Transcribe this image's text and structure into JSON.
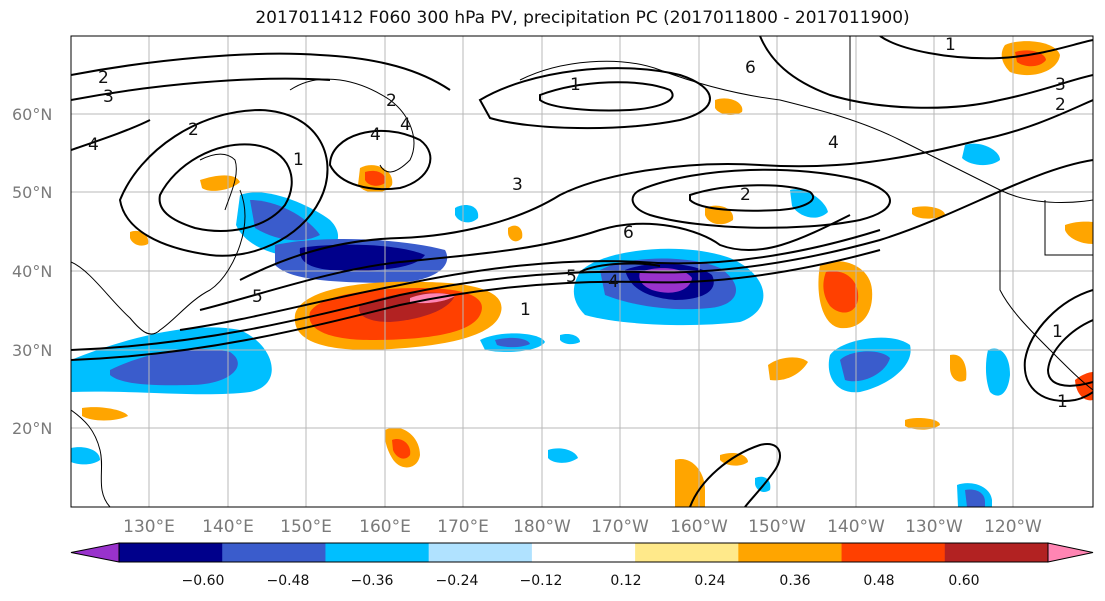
{
  "title": "2017011412 F060 300 hPa PV, precipitation PC (2017011800 - 2017011900)",
  "lat_labels": [
    "60°N",
    "50°N",
    "40°N",
    "30°N",
    "20°N"
  ],
  "lon_labels": [
    "130°E",
    "140°E",
    "150°E",
    "160°E",
    "170°E",
    "180°W",
    "170°W",
    "160°W",
    "150°W",
    "140°W",
    "130°W",
    "120°W"
  ],
  "colorbar": {
    "ticks": [
      "−0.60",
      "−0.48",
      "−0.36",
      "−0.24",
      "−0.12",
      "0.12",
      "0.24",
      "0.36",
      "0.48",
      "0.60"
    ],
    "colors": [
      "#9932cc",
      "#00008b",
      "#3a5ccc",
      "#00bfff",
      "#b0e2ff",
      "#ffffff",
      "#ffe98a",
      "#ffa500",
      "#ff4000",
      "#b22222",
      "#ff85b3"
    ]
  },
  "contour_labels": [
    "2",
    "3",
    "4",
    "2",
    "4",
    "1",
    "2",
    "4",
    "3",
    "1",
    "6",
    "1",
    "4",
    "2",
    "6",
    "5",
    "4",
    "5",
    "1",
    "1",
    "1",
    "3",
    "2"
  ]
}
